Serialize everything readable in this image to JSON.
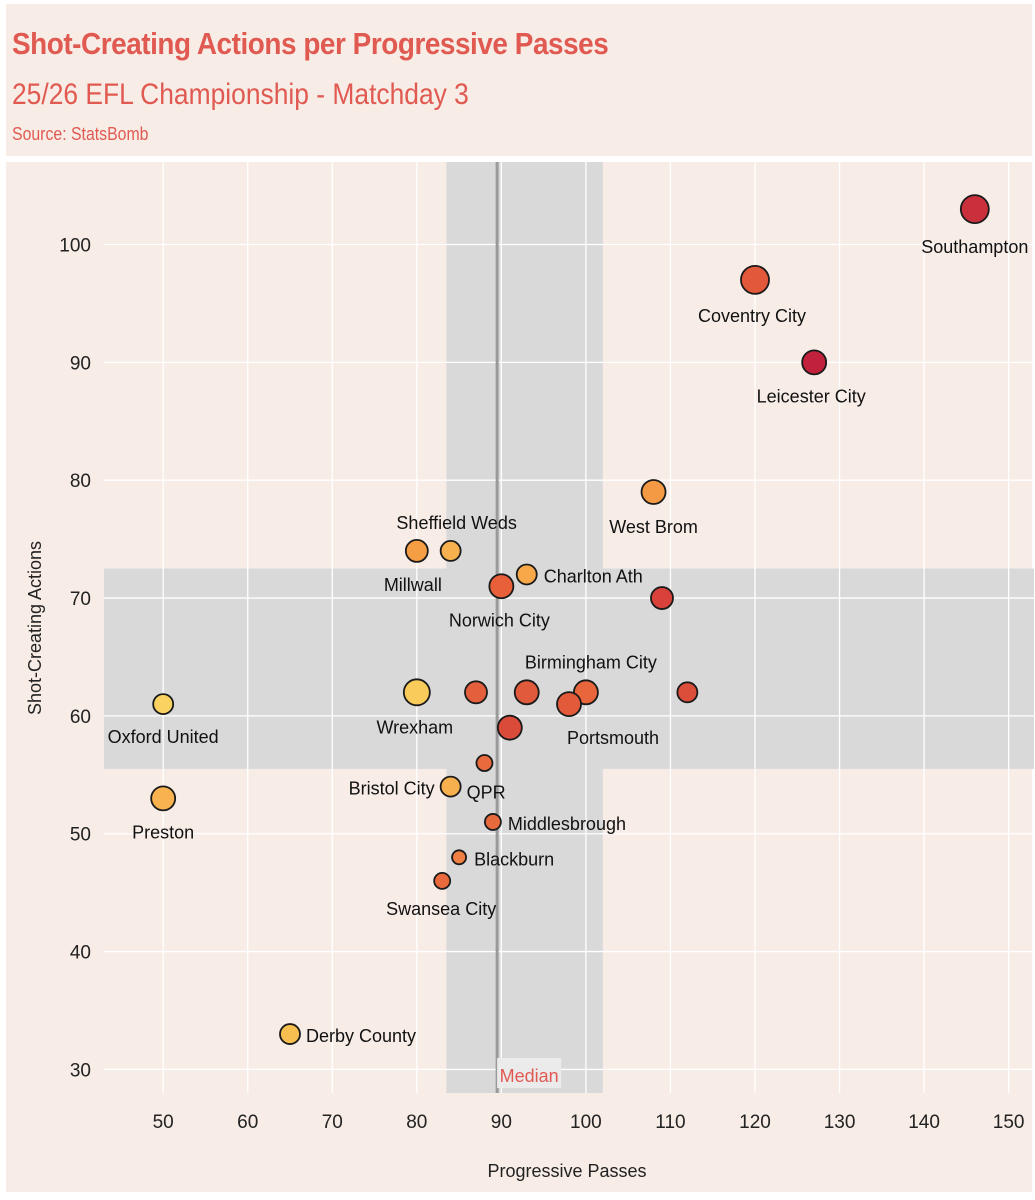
{
  "header": {
    "title": "Shot-Creating Actions per Progressive Passes",
    "subtitle": "25/26 EFL Championship - Matchday 3",
    "source": "Source: StatsBomb"
  },
  "colors": {
    "background": "#f7ece6",
    "title": "#e05a52",
    "band": "#d9d9d9",
    "median_line": "#9a9a9a",
    "grid": "#ffffff",
    "point_stroke": "#1a1a1a"
  },
  "chart_data": {
    "type": "scatter",
    "title": "Shot-Creating Actions per Progressive Passes",
    "subtitle": "25/26 EFL Championship - Matchday 3",
    "xlabel": "Progressive Passes",
    "ylabel": "Shot-Creating Actions",
    "xlim": [
      43,
      153
    ],
    "ylim": [
      28,
      107
    ],
    "xticks": [
      50,
      60,
      70,
      80,
      90,
      100,
      110,
      120,
      130,
      140,
      150
    ],
    "yticks": [
      30,
      40,
      50,
      60,
      70,
      80,
      90,
      100
    ],
    "grid": true,
    "median_label": "Median",
    "median_x": 89.5,
    "x_band": [
      83.5,
      102
    ],
    "y_band": [
      55.5,
      72.5
    ],
    "points": [
      {
        "label": "Southampton",
        "x": 146,
        "y": 103,
        "color": "#c9303c",
        "size": 14
      },
      {
        "label": "Coventry City",
        "x": 120,
        "y": 97,
        "color": "#e2583a",
        "size": 14
      },
      {
        "label": "Leicester City",
        "x": 127,
        "y": 90,
        "color": "#c2213b",
        "size": 12
      },
      {
        "label": "West Brom",
        "x": 108,
        "y": 79,
        "color": "#f49a45",
        "size": 12
      },
      {
        "label": "Sheffield Weds",
        "x": 84,
        "y": 74,
        "color": "#f8b14f",
        "size": 10
      },
      {
        "label": "Millwall",
        "x": 80,
        "y": 74,
        "color": "#f59e44",
        "size": 11
      },
      {
        "label": "Charlton Ath",
        "x": 93,
        "y": 72,
        "color": "#f8a848",
        "size": 10
      },
      {
        "label": "Norwich City",
        "x": 90,
        "y": 71,
        "color": "#e7603a",
        "size": 12
      },
      {
        "label": "",
        "x": 109,
        "y": 70,
        "color": "#d8423a",
        "size": 11
      },
      {
        "label": "Birmingham City",
        "x": 100,
        "y": 62,
        "color": "#e9663c",
        "size": 12
      },
      {
        "label": "",
        "x": 93,
        "y": 62,
        "color": "#e15a3b",
        "size": 12
      },
      {
        "label": "",
        "x": 87,
        "y": 62,
        "color": "#e4603c",
        "size": 11
      },
      {
        "label": "",
        "x": 112,
        "y": 62,
        "color": "#dc4d3a",
        "size": 10
      },
      {
        "label": "Wrexham",
        "x": 80,
        "y": 62,
        "color": "#f8cb5a",
        "size": 13
      },
      {
        "label": "Portsmouth",
        "x": 98,
        "y": 61,
        "color": "#e35a3b",
        "size": 12
      },
      {
        "label": "",
        "x": 91,
        "y": 59,
        "color": "#db4b3a",
        "size": 12
      },
      {
        "label": "Oxford United",
        "x": 50,
        "y": 61,
        "color": "#f9d262",
        "size": 10
      },
      {
        "label": "",
        "x": 88,
        "y": 56,
        "color": "#e86a3d",
        "size": 8
      },
      {
        "label": "Bristol City",
        "x": 84,
        "y": 54,
        "color": "#f7b04e",
        "size": 10
      },
      {
        "label": "QPR",
        "x": 84,
        "y": 54,
        "color": "#f7b04e",
        "size": 0
      },
      {
        "label": "Preston",
        "x": 50,
        "y": 53,
        "color": "#f8b24f",
        "size": 12
      },
      {
        "label": "Middlesbrough",
        "x": 89,
        "y": 51,
        "color": "#e76a3c",
        "size": 8
      },
      {
        "label": "Blackburn",
        "x": 85,
        "y": 48,
        "color": "#ef7f43",
        "size": 7
      },
      {
        "label": "Swansea City",
        "x": 83,
        "y": 46,
        "color": "#eb6a3d",
        "size": 8
      },
      {
        "label": "Derby County",
        "x": 65,
        "y": 33,
        "color": "#f6bf4f",
        "size": 10
      }
    ]
  }
}
